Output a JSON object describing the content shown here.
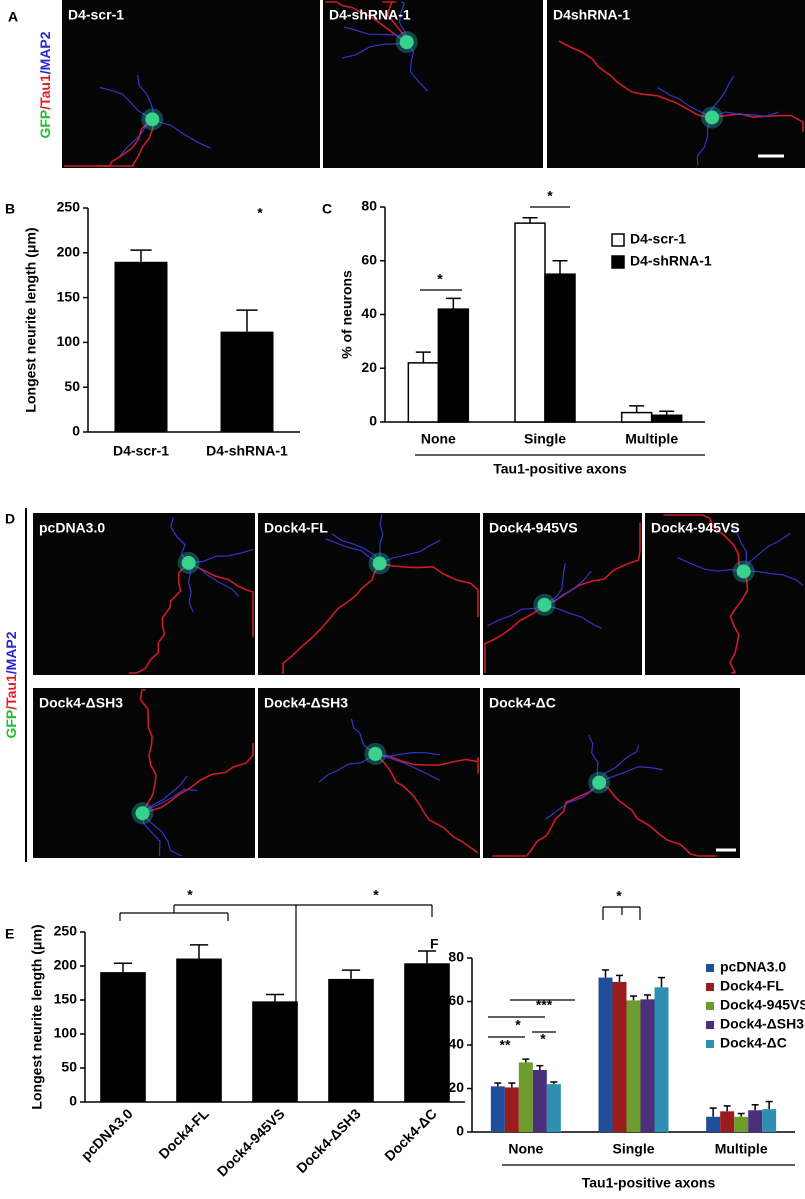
{
  "chart_data": [
    {
      "type": "bar",
      "panel": "B",
      "ylabel": "Longest neurite length (μm)",
      "categories": [
        "D4-scr-1",
        "D4-shRNA-1"
      ],
      "values": [
        190,
        112
      ],
      "errors": [
        13,
        24
      ],
      "color": "#000000",
      "ylim": [
        0,
        250
      ],
      "yticks": [
        0,
        50,
        100,
        150,
        200,
        250
      ],
      "annotations": [
        "*"
      ]
    },
    {
      "type": "grouped-bar",
      "panel": "C",
      "ylabel": "% of neurons",
      "xlabel": "Tau1-positive axons",
      "categories": [
        "None",
        "Single",
        "Multiple"
      ],
      "series": [
        {
          "name": "D4-scr-1",
          "color": "#ffffff",
          "values": [
            22,
            74,
            3.5
          ],
          "errors": [
            4,
            2,
            2.5
          ]
        },
        {
          "name": "D4-shRNA-1",
          "color": "#000000",
          "values": [
            42,
            55,
            2.5
          ],
          "errors": [
            4,
            5,
            1.5
          ]
        }
      ],
      "ylim": [
        0,
        80
      ],
      "yticks": [
        0,
        20,
        40,
        60,
        80
      ],
      "legend": "upper right",
      "annotations": [
        "*",
        "*"
      ]
    },
    {
      "type": "bar",
      "panel": "E",
      "ylabel": "Longest neurite length (μm)",
      "categories": [
        "pcDNA3.0",
        "Dock4-FL",
        "Dock4-945VS",
        "Dock4-ΔSH3",
        "Dock4-ΔC"
      ],
      "values": [
        191,
        211,
        148,
        181,
        204
      ],
      "errors": [
        13,
        20,
        10,
        13,
        18
      ],
      "color": "#000000",
      "ylim": [
        0,
        250
      ],
      "yticks": [
        0,
        50,
        100,
        150,
        200,
        250
      ],
      "annotations": [
        "*",
        "*"
      ]
    },
    {
      "type": "grouped-bar",
      "panel": "F",
      "ylabel": "% of neurons",
      "xlabel": "Tau1-positive axons",
      "categories": [
        "None",
        "Single",
        "Multiple"
      ],
      "series": [
        {
          "name": "pcDNA3.0",
          "color": "#1f4e9a",
          "values": [
            21,
            71,
            7
          ],
          "errors": [
            1.5,
            3.5,
            4
          ]
        },
        {
          "name": "Dock4-FL",
          "color": "#9b1c1c",
          "values": [
            20.5,
            69,
            9.5
          ],
          "errors": [
            2,
            3,
            2.5
          ]
        },
        {
          "name": "Dock4-945VS",
          "color": "#6d9b2c",
          "values": [
            32,
            60.5,
            7
          ],
          "errors": [
            1.5,
            2,
            1.5
          ]
        },
        {
          "name": "Dock4-ΔSH3",
          "color": "#4b2f7a",
          "values": [
            28.5,
            61,
            10
          ],
          "errors": [
            2,
            2,
            2.5
          ]
        },
        {
          "name": "Dock4-ΔC",
          "color": "#2f8fb0",
          "values": [
            22,
            66.5,
            10.5
          ],
          "errors": [
            1,
            4.5,
            3.5
          ]
        }
      ],
      "ylim": [
        0,
        80
      ],
      "yticks": [
        0,
        20,
        40,
        60,
        80
      ],
      "legend": "upper right",
      "annotations": [
        "*",
        "**",
        "*",
        "***",
        "*"
      ]
    }
  ],
  "micrographs": [
    {
      "panel": "A",
      "stain": [
        "GFP",
        "/Tau1",
        "/MAP2"
      ],
      "labels": [
        "D4-scr-1",
        "D4-shRNA-1",
        "D4shRNA-1"
      ]
    },
    {
      "panel": "D",
      "stain": [
        "GFP",
        "/Tau1",
        "/MAP2"
      ],
      "labels": [
        "pcDNA3.0",
        "Dock4-FL",
        "Dock4-945VS",
        "Dock4-945VS",
        "Dock4-ΔSH3",
        "Dock4-ΔSH3",
        "Dock4-ΔC"
      ]
    }
  ]
}
